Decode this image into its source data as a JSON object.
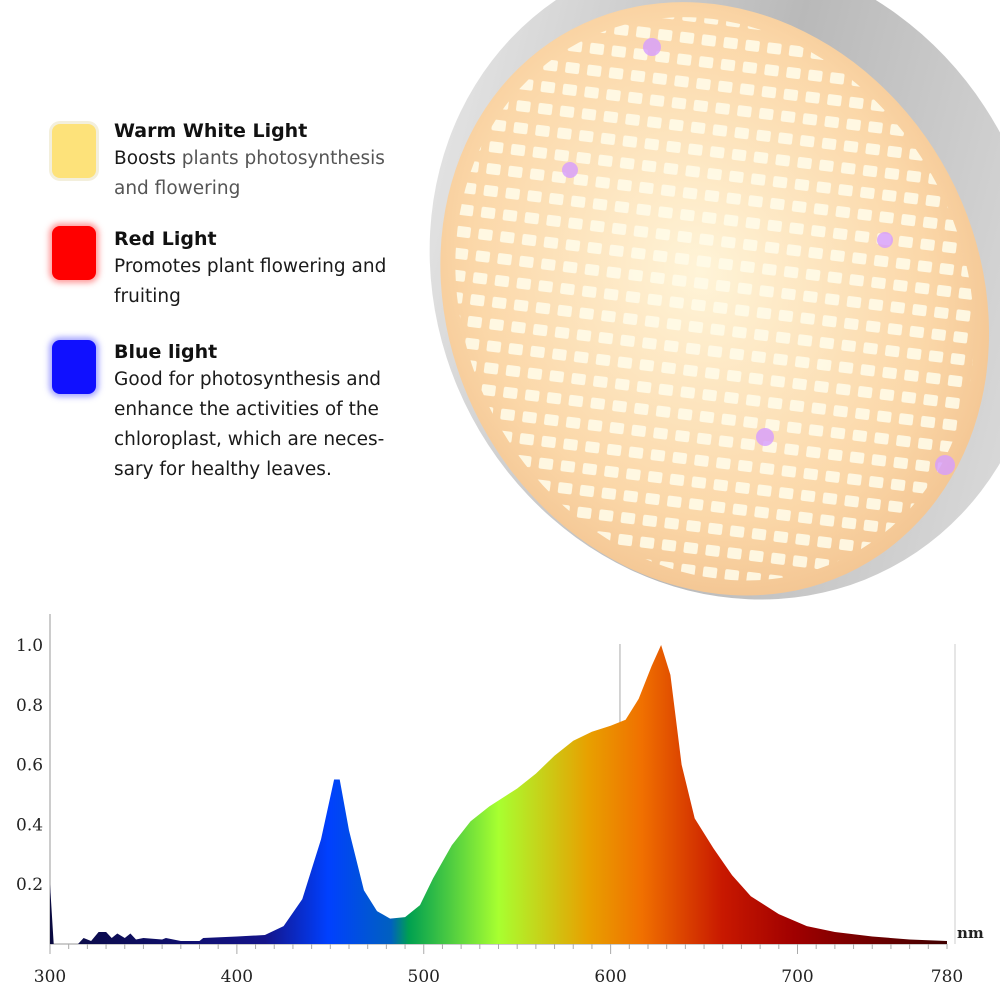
{
  "features": [
    {
      "title": "Warm White Light",
      "lead": "Boosts",
      "desc": " plants photosynthesis and flowering",
      "color": "#fde27a",
      "icon": "warm-white-led-icon"
    },
    {
      "title": "Red Light",
      "lead": "",
      "desc": "Promotes plant flowering and fruiting",
      "color": "#ff0000",
      "icon": "red-led-icon"
    },
    {
      "title": "Blue light",
      "lead": "",
      "desc": "Good for photosynthesis and enhance the activities of the chloroplast, which are neces-sary for healthy leaves.",
      "color": "#1010ff",
      "icon": "blue-led-icon"
    }
  ],
  "chart_data": {
    "type": "area",
    "title": "",
    "xlabel": "nm",
    "ylabel": "",
    "xlim": [
      300,
      780
    ],
    "ylim": [
      0,
      1.1
    ],
    "x_ticks": [
      "300",
      "400",
      "500",
      "600",
      "700",
      "780"
    ],
    "y_ticks": [
      "0.2",
      "0.4",
      "0.6",
      "0.8",
      "1.0"
    ],
    "grid": false,
    "fill": "visible-spectrum gradient",
    "x": [
      300,
      302,
      315,
      318,
      322,
      326,
      330,
      333,
      336,
      340,
      343,
      346,
      350,
      360,
      362,
      370,
      380,
      382,
      400,
      415,
      425,
      435,
      445,
      452,
      455,
      460,
      468,
      475,
      482,
      490,
      498,
      505,
      515,
      525,
      535,
      550,
      560,
      570,
      580,
      590,
      600,
      608,
      615,
      622,
      627,
      632,
      638,
      645,
      655,
      665,
      675,
      690,
      705,
      720,
      740,
      760,
      780
    ],
    "y": [
      0.2,
      0,
      0,
      0.02,
      0.01,
      0.04,
      0.04,
      0.02,
      0.035,
      0.02,
      0.035,
      0.015,
      0.02,
      0.015,
      0.02,
      0.01,
      0.01,
      0.02,
      0.025,
      0.03,
      0.06,
      0.15,
      0.35,
      0.55,
      0.55,
      0.38,
      0.18,
      0.11,
      0.085,
      0.09,
      0.13,
      0.22,
      0.33,
      0.41,
      0.46,
      0.52,
      0.57,
      0.63,
      0.68,
      0.71,
      0.73,
      0.75,
      0.82,
      0.93,
      1.0,
      0.9,
      0.6,
      0.42,
      0.32,
      0.23,
      0.16,
      0.1,
      0.06,
      0.04,
      0.025,
      0.015,
      0.01
    ]
  }
}
